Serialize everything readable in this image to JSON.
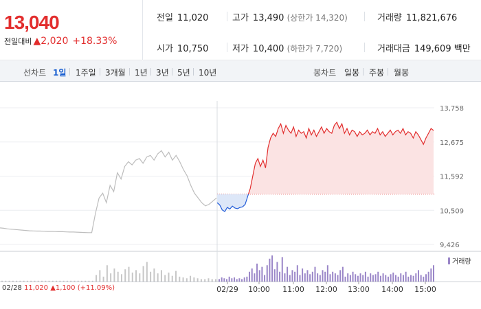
{
  "header": {
    "price": "13,040",
    "change_label": "전일대비",
    "change_value": "2,020",
    "change_rate": "+18.33%",
    "prev_close_label": "전일",
    "prev_close": "11,020",
    "open_label": "시가",
    "open": "10,750",
    "high_label": "고가",
    "high": "13,490",
    "upper_limit": "(상한가 14,320)",
    "low_label": "저가",
    "low": "10,400",
    "lower_limit": "(하한가 7,720)",
    "volume_label": "거래량",
    "volume": "11,821,676",
    "amount_label": "거래대금",
    "amount": "149,609 백만"
  },
  "toolbar": {
    "line_label": "선차트",
    "periods": [
      "1일",
      "1주일",
      "3개월",
      "1년",
      "3년",
      "5년",
      "10년"
    ],
    "candle_label": "봉차트",
    "candles": [
      "일봉",
      "주봉",
      "월봉"
    ]
  },
  "bottom": {
    "prev_date": "02/28",
    "prev_price": "11,020",
    "prev_change": "1,100",
    "prev_rate": "(+11.09%)"
  },
  "legend": {
    "volume": "거래량"
  },
  "colors": {
    "up": "#e22d2d",
    "down": "#1f5ad8",
    "prev_day": "#bdbdbd",
    "volume": "#9a86c8",
    "fill_up": "#fbe3e3",
    "fill_down": "#dde7f8"
  },
  "chart_data": {
    "type": "line",
    "y_ticks": [
      "13,758",
      "12,675",
      "11,592",
      "10,509",
      "9,426"
    ],
    "ylim": [
      9426,
      13758
    ],
    "baseline": 11020,
    "x_labels": [
      "02/29",
      "10:00",
      "11:00",
      "12:00",
      "13:00",
      "14:00",
      "15:00"
    ],
    "prev_day_label": "02/28",
    "series": [
      {
        "period": "02/28",
        "values": [
          9950,
          9940,
          9920,
          9910,
          9900,
          9890,
          9880,
          9870,
          9860,
          9855,
          9850,
          9850,
          9845,
          9840,
          9840,
          9835,
          9830,
          9830,
          9825,
          9820,
          9820,
          9815,
          9810,
          9805,
          9800,
          9800,
          10400,
          10900,
          11050,
          10750,
          11300,
          11100,
          11700,
          11500,
          11900,
          12050,
          11950,
          12100,
          12150,
          12000,
          12200,
          12250,
          12100,
          12300,
          12400,
          12200,
          12350,
          12100,
          12250,
          12050,
          11800,
          11600,
          11300,
          11050,
          10900,
          10750,
          10650,
          10700,
          10800,
          10900
        ]
      },
      {
        "period": "02/29",
        "values": [
          10750,
          10680,
          10520,
          10470,
          10600,
          10550,
          10640,
          10580,
          10560,
          10600,
          10620,
          10700,
          10950,
          11200,
          11600,
          12000,
          12150,
          11900,
          12100,
          11850,
          12500,
          12800,
          12950,
          12850,
          13100,
          13250,
          12950,
          13200,
          13050,
          12950,
          13150,
          12850,
          13050,
          12950,
          13000,
          12800,
          13100,
          12900,
          13050,
          12850,
          13000,
          13150,
          12950,
          13100,
          13000,
          12950,
          13200,
          13300,
          13100,
          13250,
          12950,
          13100,
          12900,
          13050,
          13000,
          12850,
          13000,
          12900,
          12950,
          13050,
          12900,
          13000,
          12950,
          13100,
          12900,
          13000,
          12850,
          12950,
          13050,
          12900,
          13000,
          13050,
          12950,
          13100,
          12900,
          13000,
          12950,
          12800,
          13000,
          12900,
          12750,
          12600,
          12800,
          12950,
          13100,
          13040
        ]
      }
    ],
    "volume": {
      "prev": [
        1,
        1,
        1,
        1,
        1,
        1,
        1,
        1,
        1,
        1,
        1,
        1,
        1,
        1,
        1,
        1,
        1,
        1,
        1,
        1,
        1,
        1,
        1,
        1,
        1,
        1,
        8,
        14,
        6,
        20,
        10,
        16,
        12,
        9,
        15,
        18,
        11,
        14,
        10,
        19,
        24,
        12,
        16,
        10,
        14,
        8,
        11,
        7,
        13,
        6,
        5,
        4,
        7,
        5,
        4,
        3,
        3,
        4,
        3,
        3
      ],
      "today": [
        3,
        5,
        4,
        3,
        6,
        4,
        5,
        3,
        4,
        3,
        5,
        6,
        12,
        16,
        10,
        22,
        14,
        18,
        8,
        20,
        28,
        32,
        15,
        24,
        12,
        30,
        10,
        18,
        8,
        14,
        12,
        20,
        8,
        16,
        10,
        14,
        9,
        12,
        18,
        10,
        8,
        14,
        12,
        20,
        9,
        12,
        10,
        8,
        14,
        18,
        6,
        10,
        8,
        12,
        9,
        7,
        10,
        8,
        12,
        6,
        10,
        8,
        9,
        12,
        7,
        10,
        8,
        6,
        9,
        11,
        8,
        6,
        10,
        8,
        12,
        6,
        8,
        7,
        10,
        14,
        8,
        6,
        9,
        12,
        16,
        20
      ]
    }
  }
}
